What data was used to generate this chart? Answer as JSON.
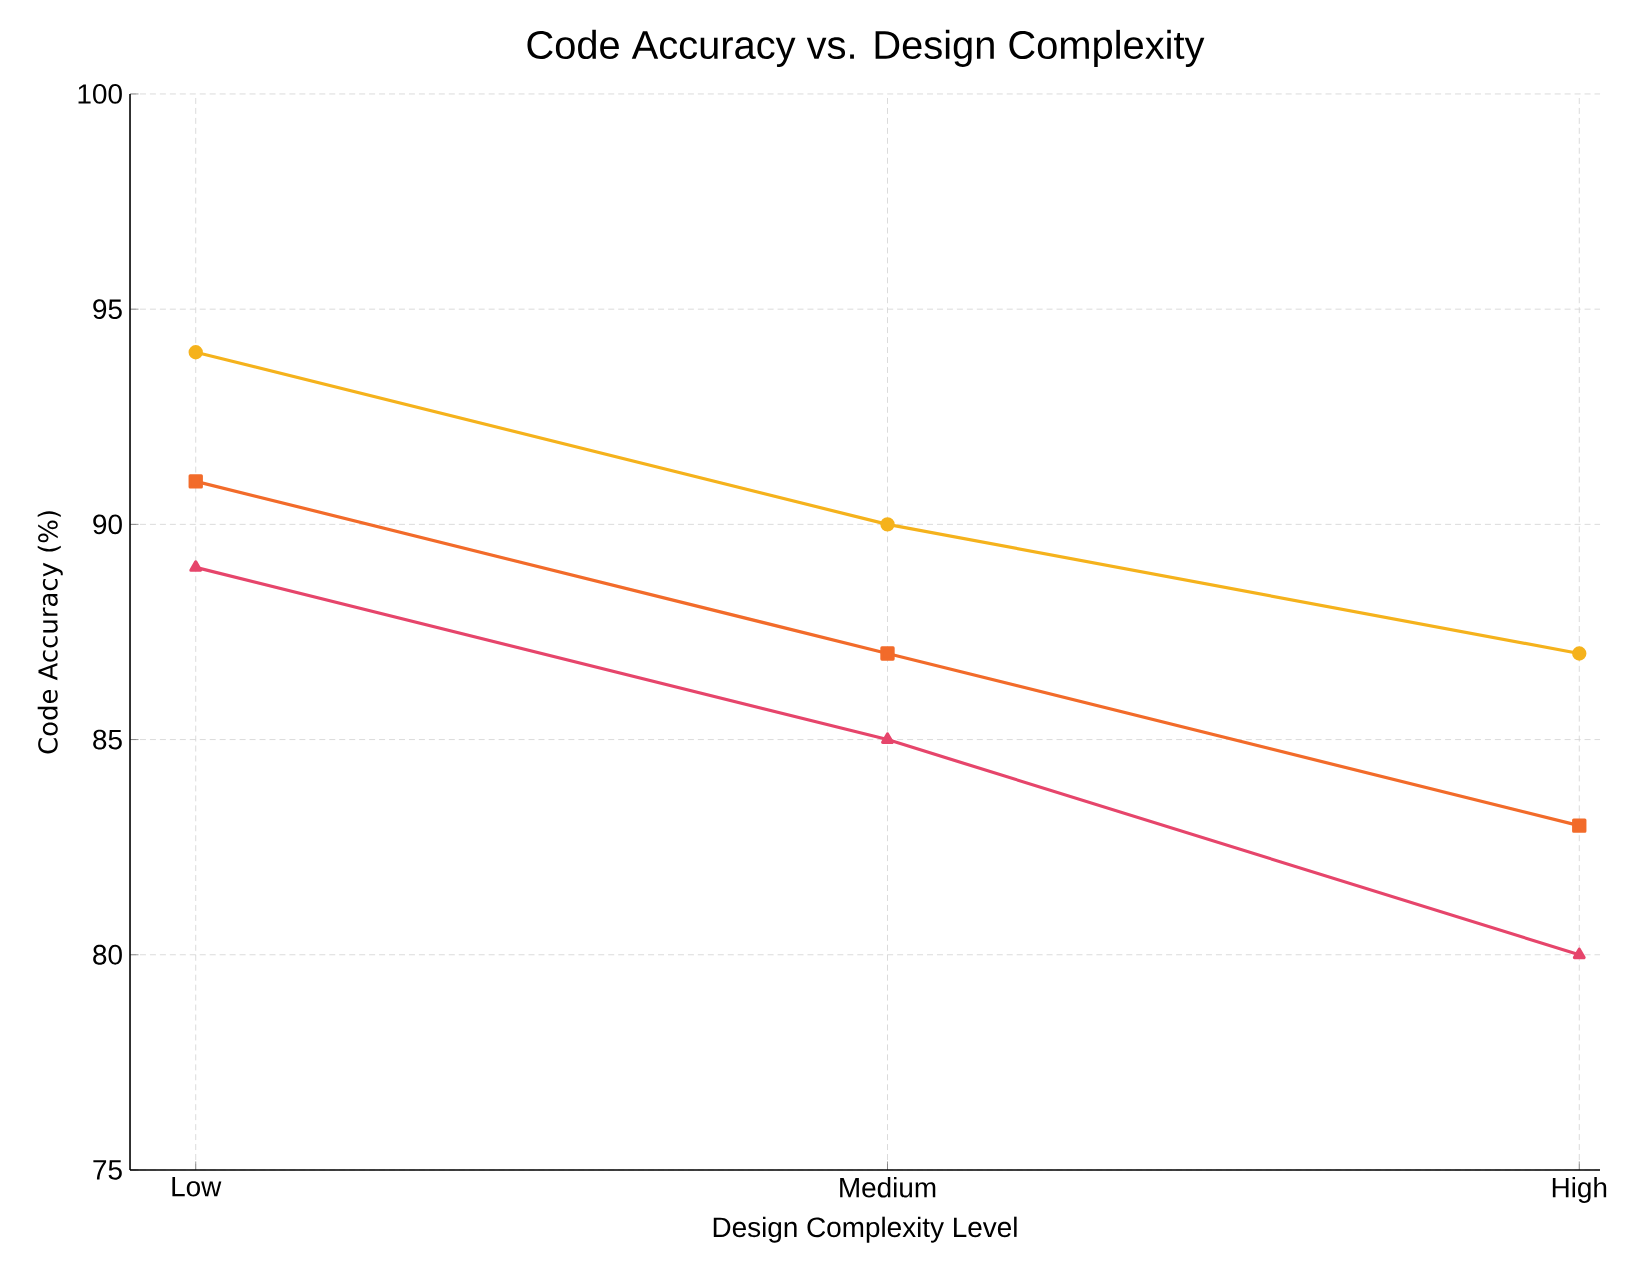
{
  "chart_data": {
    "type": "line",
    "title": "Code Accuracy vs. Design Complexity",
    "xlabel": "Design Complexity Level",
    "ylabel": "Code Accuracy (%)",
    "categories": [
      "Low",
      "Medium",
      "High"
    ],
    "series": [
      {
        "color": "#f5b21c",
        "marker": "circle",
        "values": [
          94,
          90,
          87
        ]
      },
      {
        "color": "#f26b2a",
        "marker": "square",
        "values": [
          91,
          87,
          83
        ]
      },
      {
        "color": "#e6456b",
        "marker": "triangle",
        "values": [
          89,
          85,
          80
        ]
      }
    ],
    "ylim": [
      75,
      100
    ],
    "yticks": [
      75,
      80,
      85,
      90,
      95,
      100
    ],
    "grid": true
  }
}
